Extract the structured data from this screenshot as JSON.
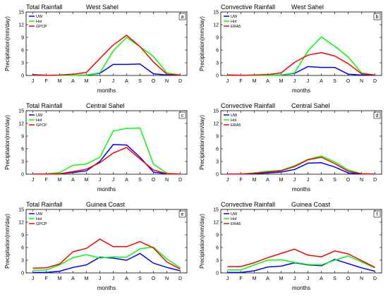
{
  "chart_data": [
    {
      "type": "line",
      "id": "a",
      "title": "Total Rainfall",
      "subtitle": "West Sahel",
      "panel_label": "a",
      "xlabel": "months",
      "ylabel": "Precipitation(mm/day)",
      "categories": [
        "J",
        "F",
        "M",
        "A",
        "M",
        "J",
        "J",
        "A",
        "S",
        "O",
        "N",
        "D"
      ],
      "ylim": [
        0,
        15
      ],
      "yticks": [
        0,
        3,
        6,
        9,
        12,
        15
      ],
      "legend_position": "top-left",
      "series": [
        {
          "name": "UW",
          "color": "#0000ff",
          "values": [
            0.2,
            0.05,
            0.05,
            0.05,
            0.1,
            0.5,
            2.6,
            2.6,
            2.7,
            0.4,
            0.1,
            0.1
          ]
        },
        {
          "name": "Hol",
          "color": "#00ff00",
          "values": [
            0.1,
            0.05,
            0.05,
            0.05,
            0.1,
            0.6,
            5.8,
            9.0,
            6.8,
            4.5,
            0.6,
            0.1
          ]
        },
        {
          "name": "GPCP",
          "color": "#ff0000",
          "values": [
            0.1,
            0.05,
            0.1,
            0.3,
            0.7,
            4.0,
            7.2,
            9.5,
            6.8,
            3.2,
            0.3,
            0.1
          ]
        }
      ]
    },
    {
      "type": "line",
      "id": "b",
      "title": "Convective Rainfall",
      "subtitle": "West Sahel",
      "panel_label": "b",
      "xlabel": "months",
      "ylabel": "Precipitation(mm/day)",
      "categories": [
        "J",
        "F",
        "M",
        "A",
        "M",
        "J",
        "J",
        "A",
        "S",
        "O",
        "N",
        "D"
      ],
      "ylim": [
        0,
        15
      ],
      "yticks": [
        0,
        3,
        6,
        9,
        12,
        15
      ],
      "legend_position": "top-left",
      "series": [
        {
          "name": "UW",
          "color": "#0000ff",
          "values": [
            0.1,
            0.05,
            0.05,
            0.05,
            0.1,
            0.5,
            2.1,
            1.9,
            1.9,
            0.3,
            0.1,
            0.05
          ]
        },
        {
          "name": "Hol",
          "color": "#00ff00",
          "values": [
            0.1,
            0.05,
            0.05,
            0.05,
            0.1,
            0.6,
            5.8,
            9.1,
            6.9,
            4.4,
            0.6,
            0.1
          ]
        },
        {
          "name": "ERA5",
          "color": "#ff0000",
          "values": [
            0.1,
            0.05,
            0.1,
            0.2,
            0.6,
            3.1,
            4.8,
            5.4,
            4.6,
            2.8,
            0.4,
            0.1
          ]
        }
      ]
    },
    {
      "type": "line",
      "id": "c",
      "title": "Total Rainfall",
      "subtitle": "Central Sahel",
      "panel_label": "c",
      "xlabel": "months",
      "ylabel": "Precipitation(mm/day)",
      "categories": [
        "J",
        "F",
        "M",
        "A",
        "M",
        "J",
        "J",
        "A",
        "S",
        "O",
        "N",
        "D"
      ],
      "ylim": [
        0,
        15
      ],
      "yticks": [
        0,
        3,
        6,
        9,
        12,
        15
      ],
      "legend_position": "top-left",
      "series": [
        {
          "name": "UW",
          "color": "#0000ff",
          "values": [
            0.05,
            0.05,
            0.1,
            0.4,
            0.8,
            3.0,
            7.0,
            6.9,
            4.0,
            0.5,
            0.05,
            0.05
          ]
        },
        {
          "name": "Hol",
          "color": "#00ff00",
          "values": [
            0.05,
            0.05,
            0.4,
            2.1,
            2.4,
            4.0,
            10.2,
            10.8,
            10.9,
            2.4,
            0.2,
            0.05
          ]
        },
        {
          "name": "GPCP",
          "color": "#ff0000",
          "values": [
            0.05,
            0.05,
            0.1,
            0.6,
            1.2,
            2.7,
            5.0,
            6.3,
            3.6,
            1.0,
            0.1,
            0.05
          ]
        }
      ]
    },
    {
      "type": "line",
      "id": "d",
      "title": "Convective Rainfall",
      "subtitle": "Central Sahel",
      "panel_label": "d",
      "xlabel": "months",
      "ylabel": "Precipitation(mm/day)",
      "categories": [
        "J",
        "F",
        "M",
        "A",
        "M",
        "J",
        "J",
        "A",
        "S",
        "O",
        "N",
        "D"
      ],
      "ylim": [
        0,
        15
      ],
      "yticks": [
        0,
        3,
        6,
        9,
        12,
        15
      ],
      "legend_position": "top-left",
      "series": [
        {
          "name": "UW",
          "color": "#0000ff",
          "values": [
            0.05,
            0.05,
            0.1,
            0.3,
            0.5,
            1.1,
            2.6,
            2.7,
            1.7,
            0.3,
            0.05,
            0.05
          ]
        },
        {
          "name": "Hol",
          "color": "#00ff00",
          "values": [
            0.05,
            0.05,
            0.3,
            0.7,
            0.9,
            2.0,
            3.5,
            4.3,
            2.9,
            1.0,
            0.1,
            0.05
          ]
        },
        {
          "name": "ERA5",
          "color": "#ff0000",
          "values": [
            0.05,
            0.05,
            0.2,
            0.5,
            0.8,
            1.8,
            3.4,
            4.0,
            2.5,
            0.7,
            0.1,
            0.05
          ]
        }
      ]
    },
    {
      "type": "line",
      "id": "e",
      "title": "Total Rainfall",
      "subtitle": "Guinea Coast",
      "panel_label": "e",
      "xlabel": "months",
      "ylabel": "Precipitation(mm/day)",
      "categories": [
        "J",
        "F",
        "M",
        "A",
        "M",
        "J",
        "J",
        "A",
        "S",
        "O",
        "N",
        "D"
      ],
      "ylim": [
        0,
        15
      ],
      "yticks": [
        0,
        3,
        6,
        9,
        12,
        15
      ],
      "legend_position": "top-left",
      "series": [
        {
          "name": "UW",
          "color": "#0000ff",
          "values": [
            0.1,
            0.1,
            0.4,
            1.3,
            1.9,
            3.7,
            3.5,
            3.0,
            4.6,
            2.3,
            1.3,
            0.5
          ]
        },
        {
          "name": "Hol",
          "color": "#00ff00",
          "values": [
            0.6,
            0.7,
            1.9,
            3.6,
            4.3,
            3.5,
            3.8,
            3.7,
            5.7,
            6.1,
            3.3,
            1.2
          ]
        },
        {
          "name": "GPCP",
          "color": "#ff0000",
          "values": [
            1.1,
            1.2,
            2.1,
            5.0,
            5.8,
            8.0,
            6.2,
            6.2,
            7.4,
            5.9,
            2.6,
            0.9
          ]
        }
      ]
    },
    {
      "type": "line",
      "id": "f",
      "title": "Convective Rainfall",
      "subtitle": "Guinea Coast",
      "panel_label": "f",
      "xlabel": "months",
      "ylabel": "Precipitation(mm/day)",
      "categories": [
        "J",
        "F",
        "M",
        "A",
        "M",
        "J",
        "J",
        "A",
        "S",
        "O",
        "N",
        "D"
      ],
      "ylim": [
        0,
        15
      ],
      "yticks": [
        0,
        3,
        6,
        9,
        12,
        15
      ],
      "legend_position": "top-left",
      "series": [
        {
          "name": "UW",
          "color": "#0000ff",
          "values": [
            0.1,
            0.1,
            0.5,
            1.4,
            1.6,
            2.4,
            1.9,
            1.7,
            3.2,
            2.2,
            1.2,
            0.4
          ]
        },
        {
          "name": "Hol",
          "color": "#00ff00",
          "values": [
            0.7,
            0.7,
            1.9,
            3.0,
            3.1,
            2.5,
            2.0,
            1.9,
            3.0,
            4.0,
            2.6,
            1.2
          ]
        },
        {
          "name": "ERA5",
          "color": "#ff0000",
          "values": [
            1.5,
            1.5,
            2.4,
            3.6,
            4.6,
            5.6,
            4.2,
            3.8,
            5.2,
            4.5,
            2.9,
            1.3
          ]
        }
      ]
    }
  ]
}
